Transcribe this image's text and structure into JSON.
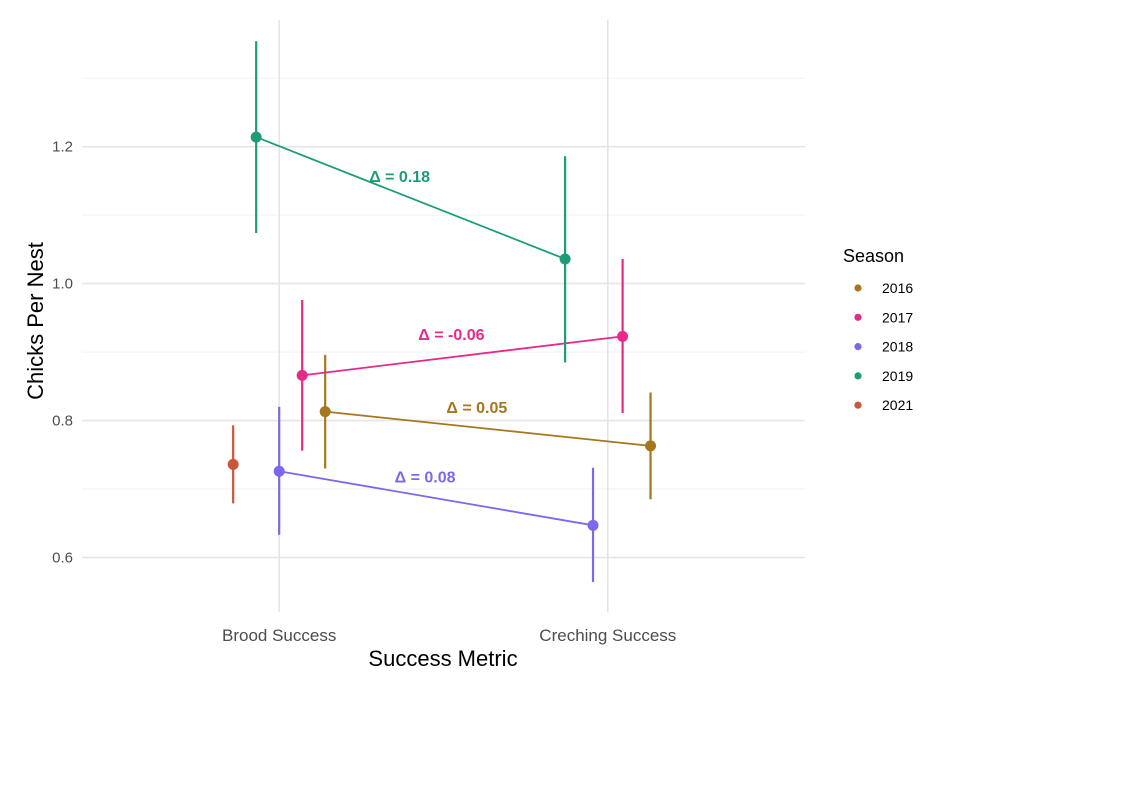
{
  "chart_data": {
    "type": "line",
    "xlabel": "Success Metric",
    "ylabel": "Chicks Per Nest",
    "categories": [
      "Brood Success",
      "Creching Success"
    ],
    "ylim": [
      0.535,
      1.385
    ],
    "yticks": [
      0.6,
      0.8,
      1.0,
      1.2
    ],
    "ytick_labels": [
      "0.6",
      "0.8",
      "1.0",
      "1.2"
    ],
    "grid": true,
    "legend": {
      "title": "Season",
      "position": "right"
    },
    "series": [
      {
        "name": "2016",
        "color": "#a6761d",
        "points": [
          {
            "category": "Brood Success",
            "offset": 0.14,
            "y": 0.813,
            "lower": 0.73,
            "upper": 0.896
          },
          {
            "category": "Creching Success",
            "offset": 0.13,
            "y": 0.763,
            "lower": 0.685,
            "upper": 0.841
          }
        ],
        "delta_label": "Δ =  0.05"
      },
      {
        "name": "2017",
        "color": "#e7298a",
        "points": [
          {
            "category": "Brood Success",
            "offset": 0.07,
            "y": 0.866,
            "lower": 0.756,
            "upper": 0.976
          },
          {
            "category": "Creching Success",
            "offset": 0.045,
            "y": 0.923,
            "lower": 0.811,
            "upper": 1.036
          }
        ],
        "delta_label": "Δ =  -0.06"
      },
      {
        "name": "2018",
        "color": "#7b68ee",
        "points": [
          {
            "category": "Brood Success",
            "offset": 0.0,
            "y": 0.726,
            "lower": 0.633,
            "upper": 0.82
          },
          {
            "category": "Creching Success",
            "offset": -0.045,
            "y": 0.647,
            "lower": 0.564,
            "upper": 0.731
          }
        ],
        "delta_label": "Δ =  0.08"
      },
      {
        "name": "2019",
        "color": "#1b9e77",
        "points": [
          {
            "category": "Brood Success",
            "offset": -0.07,
            "y": 1.214,
            "lower": 1.074,
            "upper": 1.354
          },
          {
            "category": "Creching Success",
            "offset": -0.13,
            "y": 1.036,
            "lower": 0.885,
            "upper": 1.186
          }
        ],
        "delta_label": "Δ =  0.18"
      },
      {
        "name": "2021",
        "color": "#c9563a",
        "points": [
          {
            "category": "Brood Success",
            "offset": -0.14,
            "y": 0.736,
            "lower": 0.679,
            "upper": 0.793
          }
        ],
        "delta_label": ""
      }
    ]
  }
}
